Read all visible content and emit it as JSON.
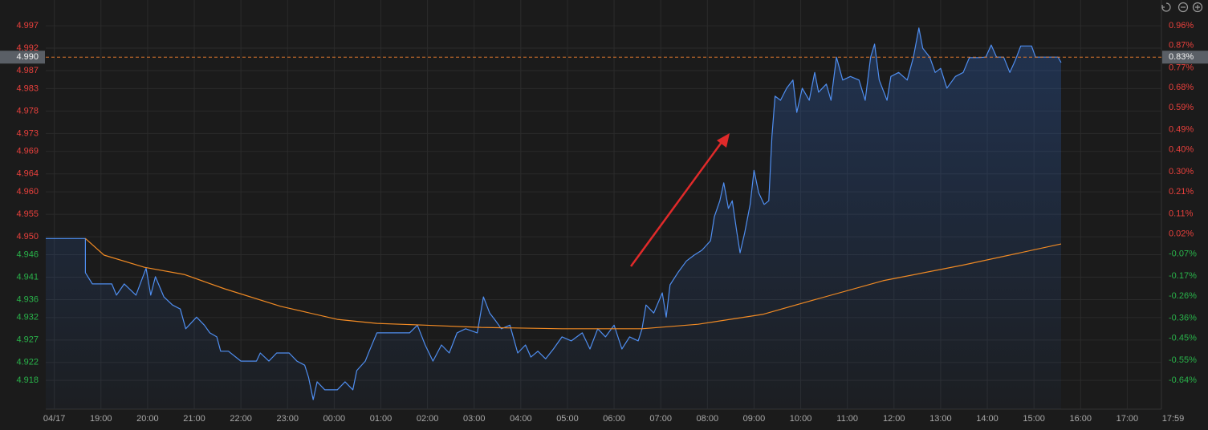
{
  "chart_data": {
    "type": "line",
    "up_color": "#e8403c",
    "down_color": "#29b34a",
    "grid": true,
    "xlim": [
      -11,
      1424
    ],
    "xticks": [
      {
        "value": 0,
        "label": "04/17"
      },
      {
        "value": 60,
        "label": "19:00"
      },
      {
        "value": 120,
        "label": "20:00"
      },
      {
        "value": 180,
        "label": "21:00"
      },
      {
        "value": 240,
        "label": "22:00"
      },
      {
        "value": 300,
        "label": "23:00"
      },
      {
        "value": 360,
        "label": "00:00"
      },
      {
        "value": 420,
        "label": "01:00"
      },
      {
        "value": 480,
        "label": "02:00"
      },
      {
        "value": 540,
        "label": "03:00"
      },
      {
        "value": 600,
        "label": "04:00"
      },
      {
        "value": 660,
        "label": "05:00"
      },
      {
        "value": 720,
        "label": "06:00"
      },
      {
        "value": 780,
        "label": "07:00"
      },
      {
        "value": 840,
        "label": "08:00"
      },
      {
        "value": 900,
        "label": "09:00"
      },
      {
        "value": 960,
        "label": "10:00"
      },
      {
        "value": 1020,
        "label": "11:00"
      },
      {
        "value": 1080,
        "label": "12:00"
      },
      {
        "value": 1140,
        "label": "13:00"
      },
      {
        "value": 1200,
        "label": "14:00"
      },
      {
        "value": 1260,
        "label": "15:00"
      },
      {
        "value": 1320,
        "label": "16:00"
      },
      {
        "value": 1380,
        "label": "17:00"
      },
      {
        "value": 1439,
        "label": "17:59"
      }
    ],
    "ylim": [
      4.9116,
      4.9988
    ],
    "yticks": [
      4.997,
      4.992,
      4.987,
      4.983,
      4.978,
      4.973,
      4.969,
      4.964,
      {
        "value": 4.96,
        "label": "4.960"
      },
      4.955,
      {
        "value": 4.95,
        "label": "4.950"
      },
      4.946,
      4.941,
      4.936,
      4.932,
      4.927,
      4.922,
      4.918
    ],
    "y2lim": [
      -0.77,
      0.996
    ],
    "y2ticks": [
      {
        "value": 0.96,
        "label": "0.96%"
      },
      {
        "value": 0.87,
        "label": "0.87%"
      },
      {
        "value": 0.77,
        "label": "0.77%"
      },
      {
        "value": 0.68,
        "label": "0.68%"
      },
      {
        "value": 0.59,
        "label": "0.59%"
      },
      {
        "value": 0.49,
        "label": "0.49%"
      },
      {
        "value": 0.4,
        "label": "0.40%"
      },
      {
        "value": 0.3,
        "label": "0.30%"
      },
      {
        "value": 0.21,
        "label": "0.21%"
      },
      {
        "value": 0.11,
        "label": "0.11%"
      },
      {
        "value": 0.02,
        "label": "0.02%"
      },
      {
        "value": -0.07,
        "label": "-0.07%"
      },
      {
        "value": -0.17,
        "label": "-0.17%"
      },
      {
        "value": -0.26,
        "label": "-0.26%"
      },
      {
        "value": -0.36,
        "label": "-0.36%"
      },
      {
        "value": -0.45,
        "label": "-0.45%"
      },
      {
        "value": -0.55,
        "label": "-0.55%"
      },
      {
        "value": -0.64,
        "label": "-0.64%"
      }
    ],
    "last_price": {
      "value": 4.99,
      "label": "4.990"
    },
    "last_change": {
      "value": 0.83,
      "label": "0.83%"
    },
    "series": [
      {
        "color": "#4f8ef0",
        "area": true,
        "x": [
          -11,
          40,
          40,
          49,
          74,
          80,
          90,
          105,
          118,
          124,
          130,
          141,
          152,
          162,
          169,
          183,
          193,
          200,
          209,
          214,
          224,
          240,
          260,
          265,
          276,
          286,
          302,
          312,
          322,
          327,
          333,
          338,
          348,
          364,
          374,
          384,
          389,
          400,
          405,
          415,
          436,
          457,
          467,
          477,
          487,
          498,
          508,
          518,
          529,
          544,
          552,
          560,
          568,
          575,
          586,
          596,
          606,
          613,
          622,
          632,
          642,
          653,
          665,
          679,
          689,
          699,
          709,
          720,
          730,
          740,
          751,
          756,
          761,
          771,
          782,
          787,
          792,
          802,
          813,
          823,
          833,
          844,
          849,
          856,
          861,
          867,
          872,
          878,
          882,
          888,
          895,
          900,
          906,
          913,
          919,
          923,
          927,
          934,
          942,
          950,
          955,
          962,
          971,
          978,
          983,
          993,
          999,
          1006,
          1014,
          1024,
          1035,
          1043,
          1050,
          1055,
          1061,
          1071,
          1076,
          1086,
          1097,
          1105,
          1112,
          1117,
          1126,
          1133,
          1140,
          1148,
          1159,
          1169,
          1177,
          1188,
          1198,
          1205,
          1212,
          1221,
          1229,
          1236,
          1243,
          1257,
          1262,
          1291,
          1295
        ],
        "values": [
          4.9496,
          4.9496,
          4.942,
          4.9395,
          4.9395,
          4.937,
          4.9395,
          4.937,
          4.943,
          4.937,
          4.9411,
          4.9366,
          4.9348,
          4.9339,
          4.9295,
          4.9321,
          4.9303,
          4.9286,
          4.9277,
          4.9245,
          4.9245,
          4.9223,
          4.9223,
          4.9241,
          4.9223,
          4.9241,
          4.9241,
          4.9223,
          4.9214,
          4.9187,
          4.9137,
          4.9177,
          4.9159,
          4.9159,
          4.9177,
          4.9159,
          4.9202,
          4.9223,
          4.9245,
          4.9286,
          4.9286,
          4.9286,
          4.9303,
          4.9259,
          4.9223,
          4.9259,
          4.9241,
          4.9286,
          4.9295,
          4.9286,
          4.9366,
          4.933,
          4.9312,
          4.9295,
          4.9303,
          4.9241,
          4.9259,
          4.9232,
          4.9245,
          4.9228,
          4.925,
          4.9277,
          4.9268,
          4.9286,
          4.925,
          4.9295,
          4.9277,
          4.9303,
          4.925,
          4.9277,
          4.9268,
          4.9295,
          4.9348,
          4.933,
          4.9375,
          4.9321,
          4.9393,
          4.942,
          4.9446,
          4.9459,
          4.947,
          4.9491,
          4.9545,
          4.958,
          4.962,
          4.9563,
          4.958,
          4.9509,
          4.9464,
          4.9509,
          4.9572,
          4.9648,
          4.9598,
          4.9572,
          4.958,
          4.9723,
          4.9813,
          4.9804,
          4.9831,
          4.9849,
          4.9777,
          4.9831,
          4.9804,
          4.9866,
          4.9822,
          4.984,
          4.9804,
          4.99,
          4.9849,
          4.9857,
          4.9849,
          4.9804,
          4.99,
          4.9929,
          4.9849,
          4.9804,
          4.9857,
          4.9866,
          4.9849,
          4.99,
          4.9965,
          4.992,
          4.99,
          4.9866,
          4.9875,
          4.9831,
          4.9857,
          4.9866,
          4.9899,
          4.9899,
          4.99,
          4.9927,
          4.99,
          4.99,
          4.9866,
          4.9893,
          4.9925,
          4.9925,
          4.99,
          4.99,
          4.9888
        ]
      },
      {
        "color": "#f08a24",
        "area": false,
        "x": [
          40,
          64,
          116,
          167,
          219,
          291,
          364,
          415,
          477,
          549,
          653,
          756,
          828,
          911,
          962,
          1066,
          1169,
          1295
        ],
        "values": [
          4.9496,
          4.9459,
          4.9432,
          4.9416,
          4.9384,
          4.9345,
          4.9316,
          4.9307,
          4.9303,
          4.9298,
          4.9295,
          4.9295,
          4.9305,
          4.9327,
          4.9352,
          4.9402,
          4.9437,
          4.9484
        ]
      }
    ]
  }
}
